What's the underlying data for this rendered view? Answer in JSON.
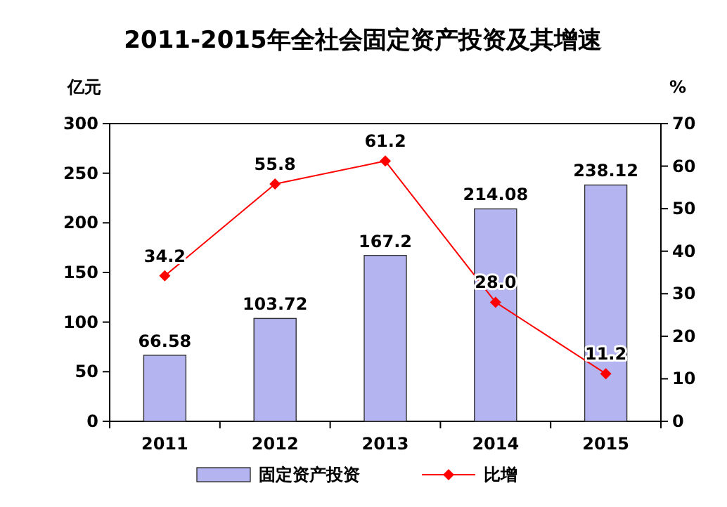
{
  "chart_data": {
    "type": "bar",
    "title": "2011-2015年全社会固定资产投资及其增速",
    "ylabel": "亿元",
    "y2label": "%",
    "categories": [
      "2011",
      "2012",
      "2013",
      "2014",
      "2015"
    ],
    "series": [
      {
        "name": "固定资产投资",
        "color": "#b4b4f0",
        "values": [
          66.58,
          103.72,
          167.2,
          214.08,
          238.12
        ],
        "value_labels": [
          "66.58",
          "103.72",
          "167.2",
          "214.08",
          "238.12"
        ]
      },
      {
        "name": "比增",
        "type": "line",
        "axis": "y2",
        "color": "#ff0000",
        "marker": "diamond",
        "values": [
          34.2,
          55.8,
          61.2,
          28.0,
          11.2
        ],
        "value_labels": [
          "34.2",
          "55.8",
          "61.2",
          "28.0",
          "11.2"
        ]
      }
    ],
    "ylim": [
      0,
      300
    ],
    "yticks": [
      0,
      50,
      100,
      150,
      200,
      250,
      300
    ],
    "y2lim": [
      0,
      70
    ],
    "y2ticks": [
      0,
      10,
      20,
      30,
      40,
      50,
      60,
      70
    ],
    "legend": "bottom"
  }
}
